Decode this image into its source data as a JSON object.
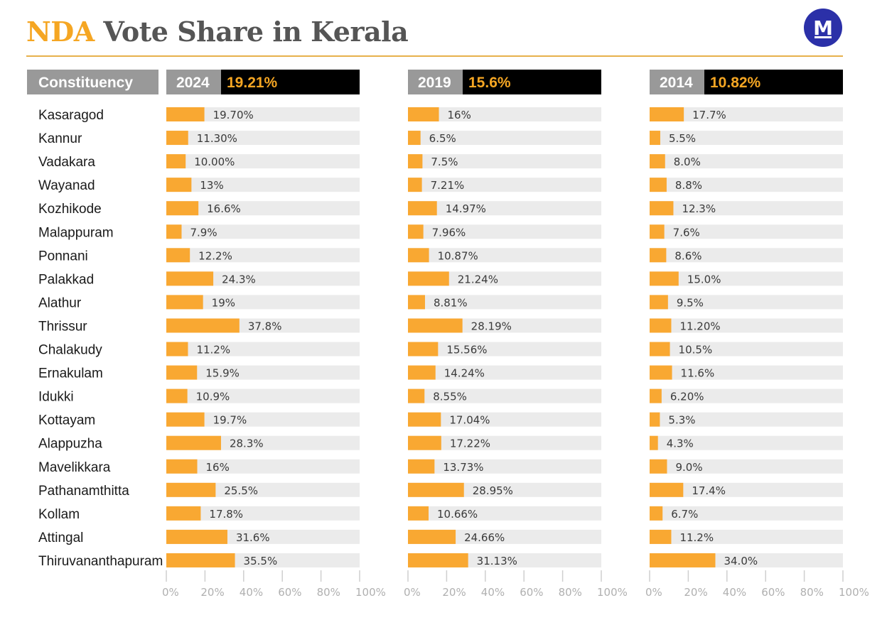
{
  "title": {
    "accent": "NDA",
    "rest": "Vote Share in Kerala"
  },
  "logo": {
    "letter": "M",
    "icon": "brand-m-logo"
  },
  "colors": {
    "accent": "#f5a623",
    "bar": "#f9a832",
    "track": "#ebebeb",
    "header_grey": "#999999",
    "header_black": "#000000",
    "title_grey": "#555555",
    "logo_blue": "#2b30a8"
  },
  "chart_data": {
    "type": "bar",
    "orientation": "horizontal",
    "title": "NDA Vote Share in Kerala",
    "category_header": "Constituency",
    "categories": [
      "Kasaragod",
      "Kannur",
      "Vadakara",
      "Wayanad",
      "Kozhikode",
      "Malappuram",
      "Ponnani",
      "Palakkad",
      "Alathur",
      "Thrissur",
      "Chalakudy",
      "Ernakulam",
      "Idukki",
      "Kottayam",
      "Alappuzha",
      "Mavelikkara",
      "Pathanamthitta",
      "Kollam",
      "Attingal",
      "Thiruvananthapuram"
    ],
    "xlim": [
      0,
      100
    ],
    "ticks": [
      "0%",
      "20%",
      "40%",
      "60%",
      "80%",
      "100%"
    ],
    "series": [
      {
        "name": "2024",
        "total_label": "19.21%",
        "values": [
          19.7,
          11.3,
          10.0,
          13,
          16.6,
          7.9,
          12.2,
          24.3,
          19,
          37.8,
          11.2,
          15.9,
          10.9,
          19.7,
          28.3,
          16,
          25.5,
          17.8,
          31.6,
          35.5
        ],
        "labels": [
          "19.70%",
          "11.30%",
          "10.00%",
          "13%",
          "16.6%",
          "7.9%",
          "12.2%",
          "24.3%",
          "19%",
          "37.8%",
          "11.2%",
          "15.9%",
          "10.9%",
          "19.7%",
          "28.3%",
          "16%",
          "25.5%",
          "17.8%",
          "31.6%",
          "35.5%"
        ]
      },
      {
        "name": "2019",
        "total_label": "15.6%",
        "values": [
          16,
          6.5,
          7.5,
          7.21,
          14.97,
          7.96,
          10.87,
          21.24,
          8.81,
          28.19,
          15.56,
          14.24,
          8.55,
          17.04,
          17.22,
          13.73,
          28.95,
          10.66,
          24.66,
          31.13
        ],
        "labels": [
          "16%",
          "6.5%",
          "7.5%",
          "7.21%",
          "14.97%",
          "7.96%",
          "10.87%",
          "21.24%",
          "8.81%",
          "28.19%",
          "15.56%",
          "14.24%",
          "8.55%",
          "17.04%",
          "17.22%",
          "13.73%",
          "28.95%",
          "10.66%",
          "24.66%",
          "31.13%"
        ]
      },
      {
        "name": "2014",
        "total_label": "10.82%",
        "values": [
          17.7,
          5.5,
          8.0,
          8.8,
          12.3,
          7.6,
          8.6,
          15.0,
          9.5,
          11.2,
          10.5,
          11.6,
          6.2,
          5.3,
          4.3,
          9.0,
          17.4,
          6.7,
          11.2,
          34.0
        ],
        "labels": [
          "17.7%",
          "5.5%",
          "8.0%",
          "8.8%",
          "12.3%",
          "7.6%",
          "8.6%",
          "15.0%",
          "9.5%",
          "11.20%",
          "10.5%",
          "11.6%",
          "6.20%",
          "5.3%",
          "4.3%",
          "9.0%",
          "17.4%",
          "6.7%",
          "11.2%",
          "34.0%"
        ]
      }
    ]
  }
}
